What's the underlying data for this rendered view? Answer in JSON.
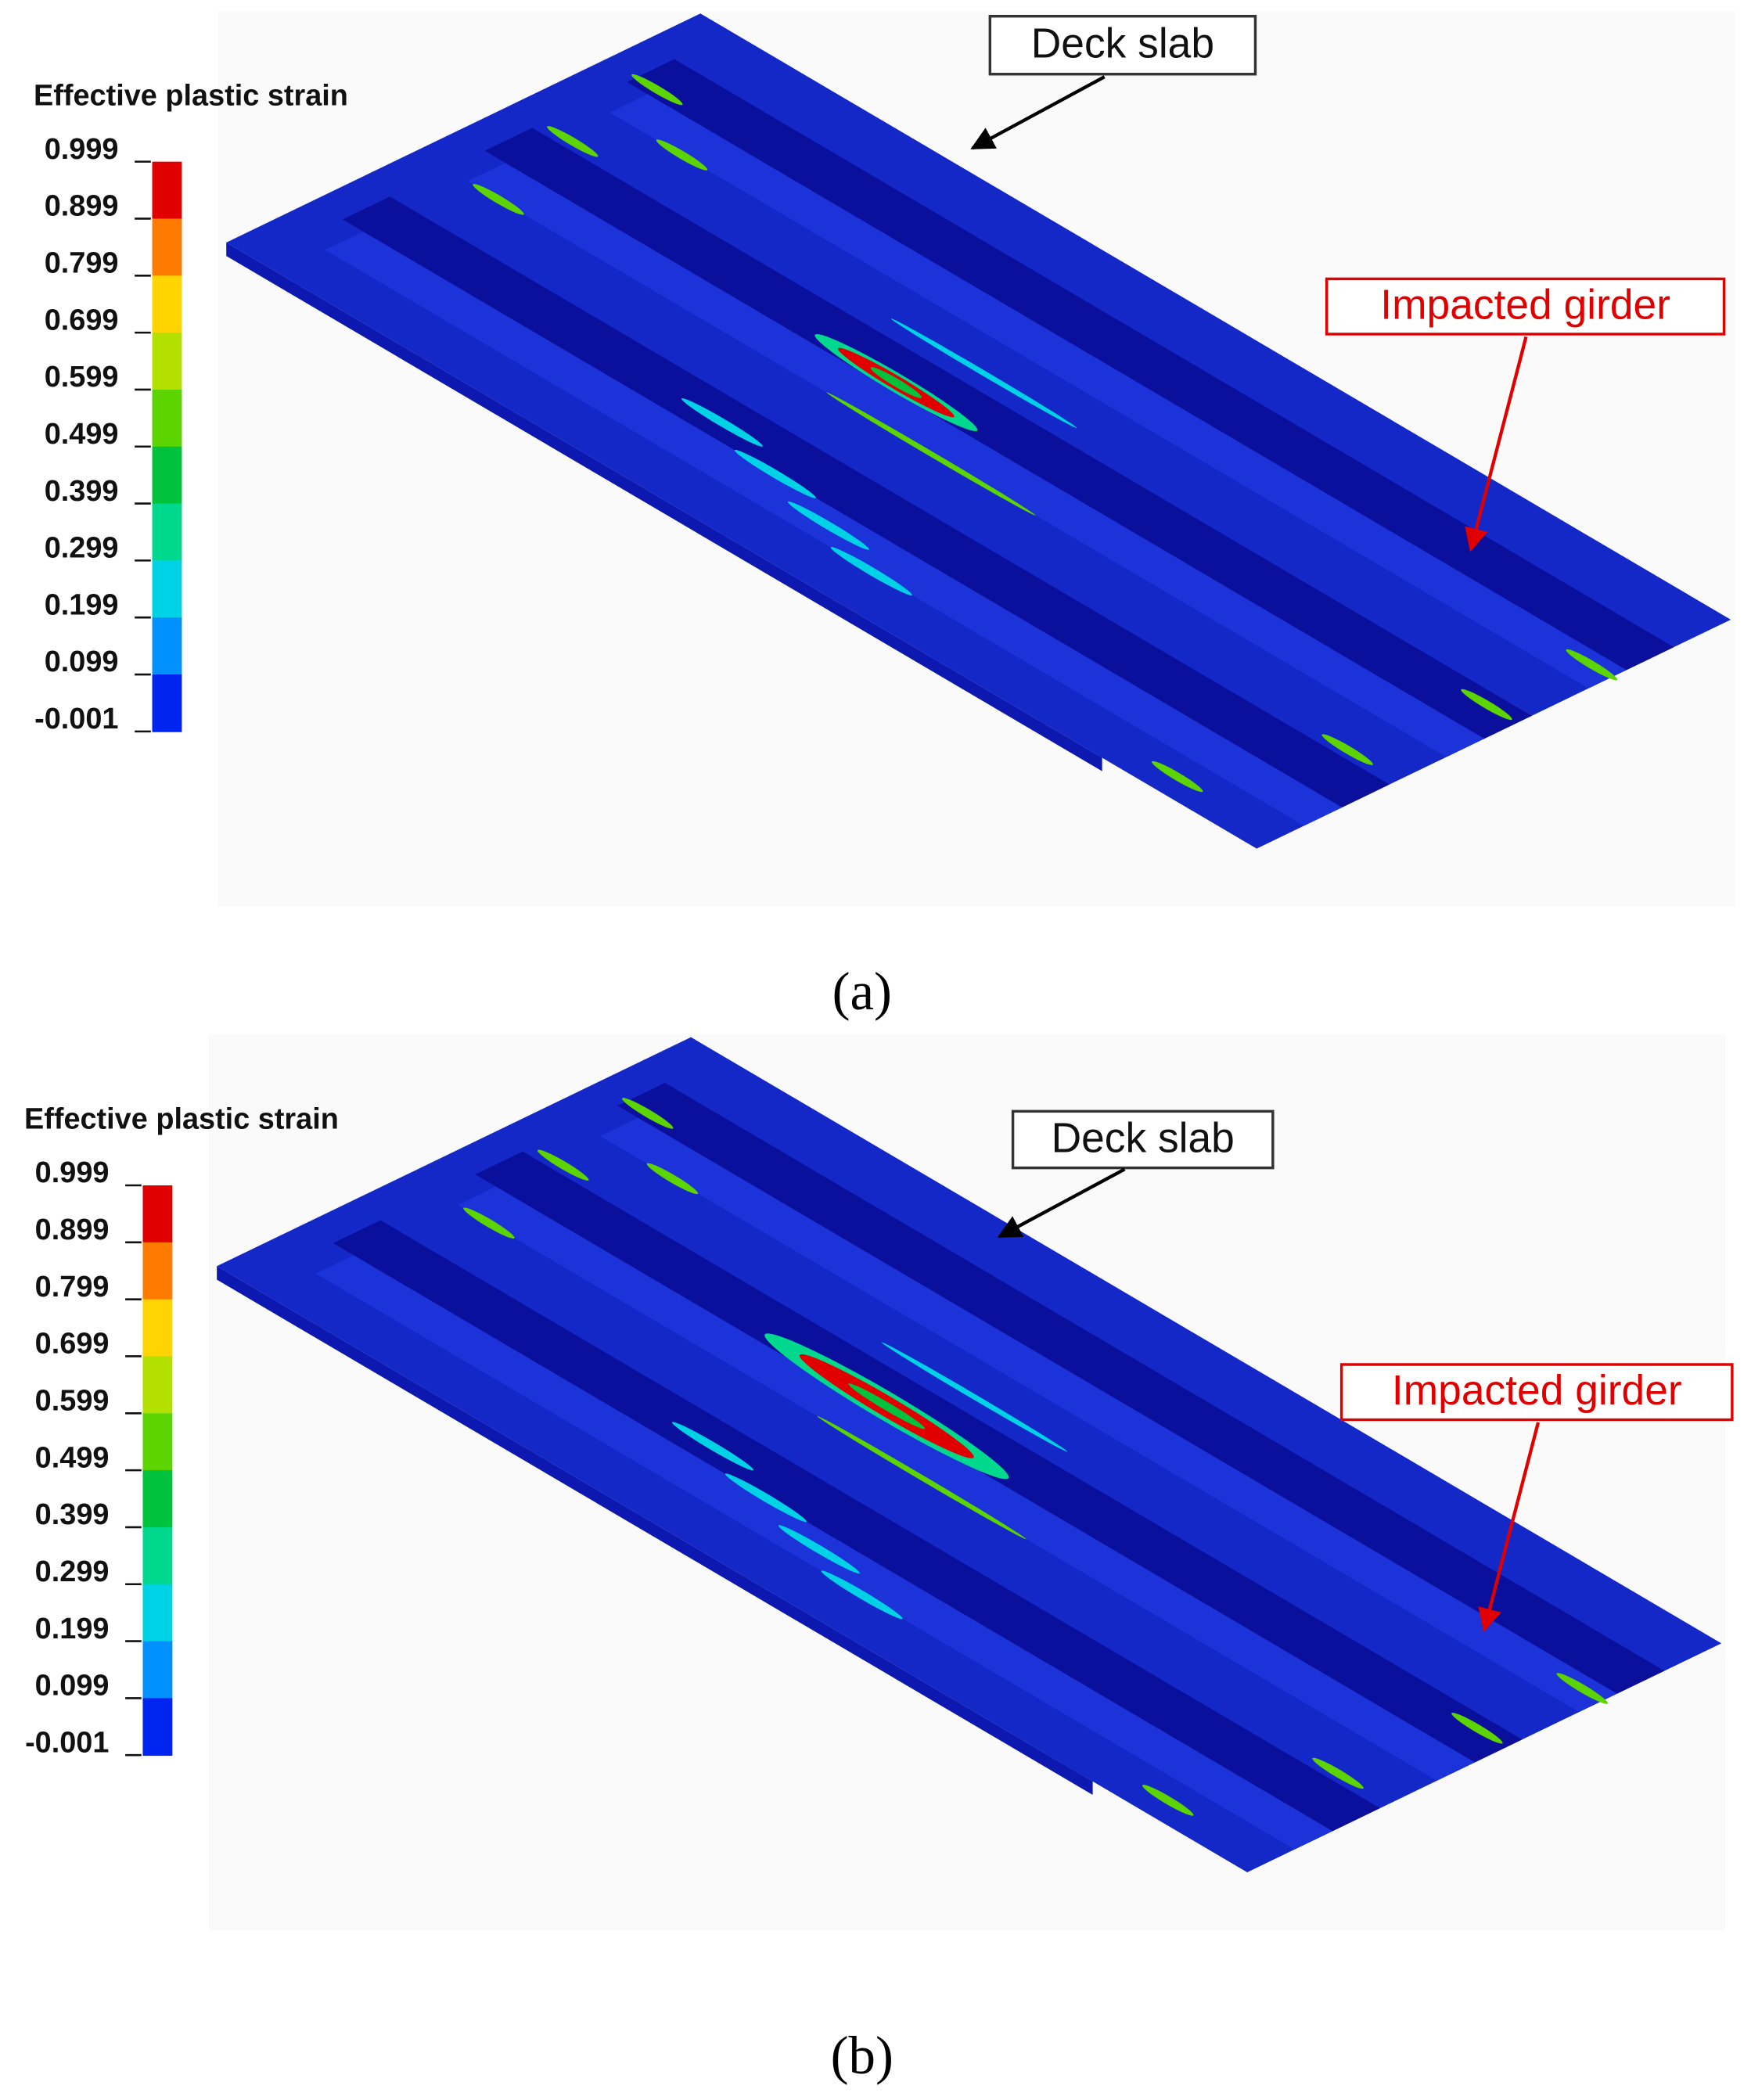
{
  "panels": [
    {
      "legend_title": "Effective plastic strain",
      "legend_ticks": [
        "0.999",
        "0.899",
        "0.799",
        "0.699",
        "0.599",
        "0.499",
        "0.399",
        "0.299",
        "0.199",
        "0.099",
        "-0.001"
      ],
      "deck_label": "Deck slab",
      "girder_label": "Impacted girder",
      "caption": "(a)"
    },
    {
      "legend_title": "Effective plastic strain",
      "legend_ticks": [
        "0.999",
        "0.899",
        "0.799",
        "0.699",
        "0.599",
        "0.499",
        "0.399",
        "0.299",
        "0.199",
        "0.099",
        "-0.001"
      ],
      "deck_label": "Deck slab",
      "girder_label": "Impacted girder",
      "caption": "(b)"
    }
  ]
}
